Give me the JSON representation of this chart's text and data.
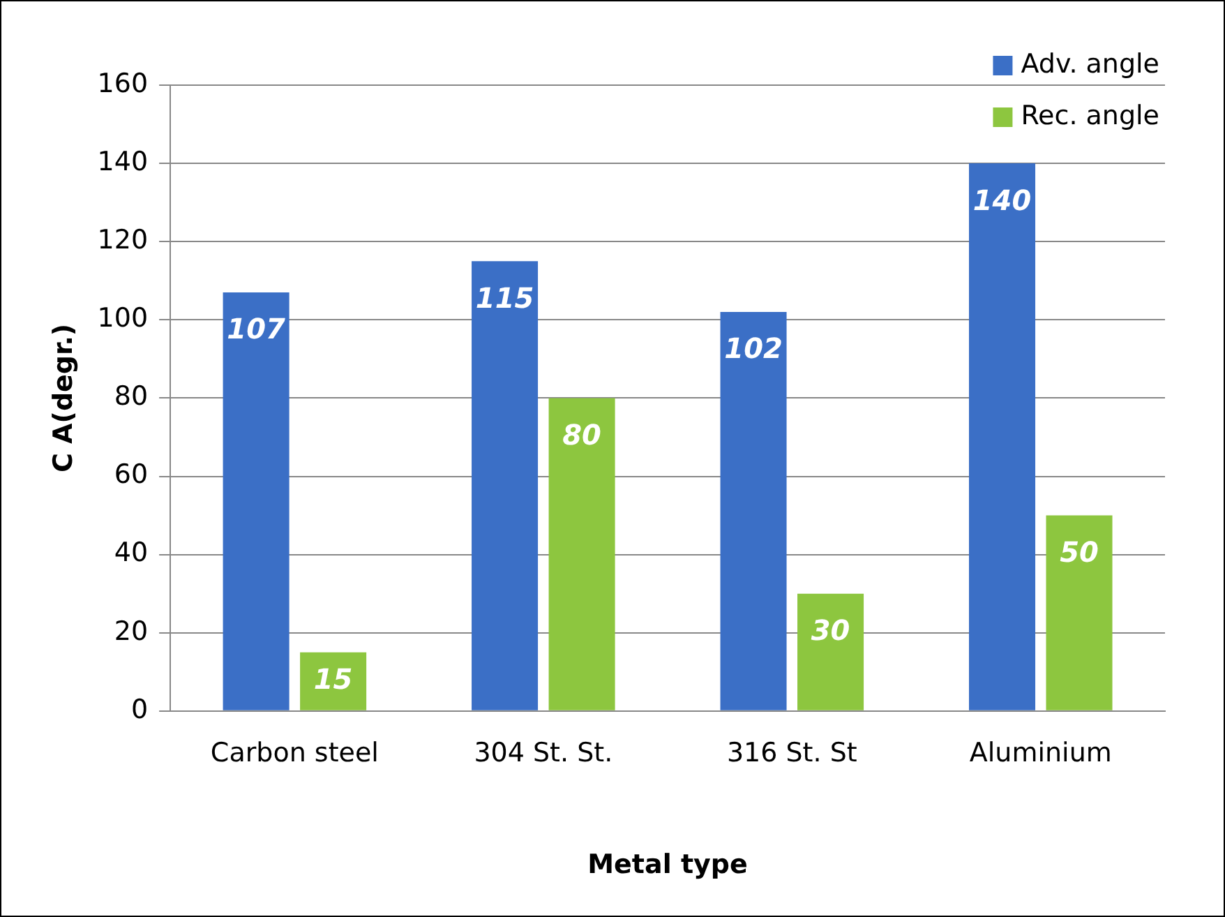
{
  "chart_data": {
    "type": "bar",
    "xlabel": "Metal type",
    "ylabel": "C A(degr.)",
    "categories": [
      "Carbon steel",
      "304 St. St.",
      "316 St. St",
      "Aluminium"
    ],
    "series": [
      {
        "name": "Adv. angle",
        "color": "#3b6fc6",
        "values": [
          107,
          115,
          102,
          140
        ]
      },
      {
        "name": "Rec. angle",
        "color": "#8dc63f",
        "values": [
          15,
          80,
          30,
          50
        ]
      }
    ],
    "ylim": [
      0,
      160
    ],
    "yticks": [
      0,
      20,
      40,
      60,
      80,
      100,
      120,
      140,
      160
    ],
    "grid": "y",
    "legend": "top right",
    "data_labels": true
  }
}
